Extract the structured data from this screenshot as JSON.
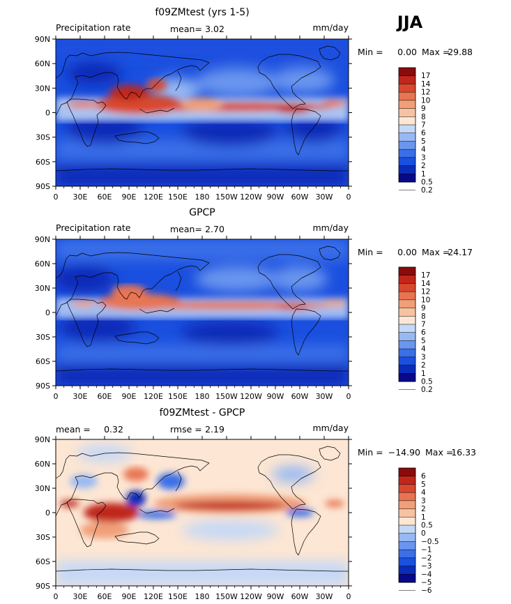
{
  "season": "JJA",
  "lat_labels": [
    "90N",
    "60N",
    "30N",
    "0",
    "30S",
    "60S",
    "90S"
  ],
  "lon_labels": [
    "0",
    "30E",
    "60E",
    "90E",
    "120E",
    "150E",
    "180",
    "150W",
    "120W",
    "90W",
    "60W",
    "30W",
    "0"
  ],
  "colors": {
    "precip": [
      "#08088a",
      "#0b2cb8",
      "#1a4fdf",
      "#3b6fe8",
      "#6a96ef",
      "#97b9f3",
      "#c4d8f7",
      "#fde6d3",
      "#f7c2a2",
      "#f09f78",
      "#e87452",
      "#d8482e",
      "#c0261a",
      "#8a0b0b"
    ],
    "diff": [
      "#08088a",
      "#0b2cb8",
      "#1a4fdf",
      "#3b6fe8",
      "#6a96ef",
      "#97b9f3",
      "#c4d8f7",
      "#fde6d3",
      "#f7c2a2",
      "#f09f78",
      "#e87452",
      "#d8482e",
      "#c0261a",
      "#8a0b0b"
    ]
  },
  "panels": [
    {
      "title": "f09ZMtest (yrs 1-5)",
      "left_label": "Precipitation rate",
      "stat_label": "mean=",
      "stat_value": "3.02",
      "stat2_label": "",
      "stat2_value": "",
      "units": "mm/day",
      "min_label": "Min =",
      "min_value": "0.00",
      "max_label": "Max =",
      "max_value": "29.88",
      "colorbar_labels": [
        "17",
        "14",
        "12",
        "10",
        "9",
        "8",
        "7",
        "6",
        "5",
        "4",
        "3",
        "2",
        "1",
        "0.5",
        "0.2"
      ],
      "kind": "precip"
    },
    {
      "title": "GPCP",
      "left_label": "Precipitation rate",
      "stat_label": "mean=",
      "stat_value": "2.70",
      "stat2_label": "",
      "stat2_value": "",
      "units": "mm/day",
      "min_label": "Min =",
      "min_value": "0.00",
      "max_label": "Max =",
      "max_value": "24.17",
      "colorbar_labels": [
        "17",
        "14",
        "12",
        "10",
        "9",
        "8",
        "7",
        "6",
        "5",
        "4",
        "3",
        "2",
        "1",
        "0.5",
        "0.2"
      ],
      "kind": "precip"
    },
    {
      "title": "f09ZMtest - GPCP",
      "left_label": "",
      "stat_label": "mean =",
      "stat_value": "0.32",
      "stat2_label": "rmse =",
      "stat2_value": "2.19",
      "units": "mm/day",
      "min_label": "Min =",
      "min_value": "−14.90",
      "max_label": "Max =",
      "max_value": "16.33",
      "colorbar_labels": [
        "6",
        "5",
        "4",
        "3",
        "2",
        "1",
        "0.5",
        "0",
        "−0.5",
        "−1",
        "−2",
        "−3",
        "−4",
        "−5",
        "−6"
      ],
      "kind": "diff"
    }
  ]
}
